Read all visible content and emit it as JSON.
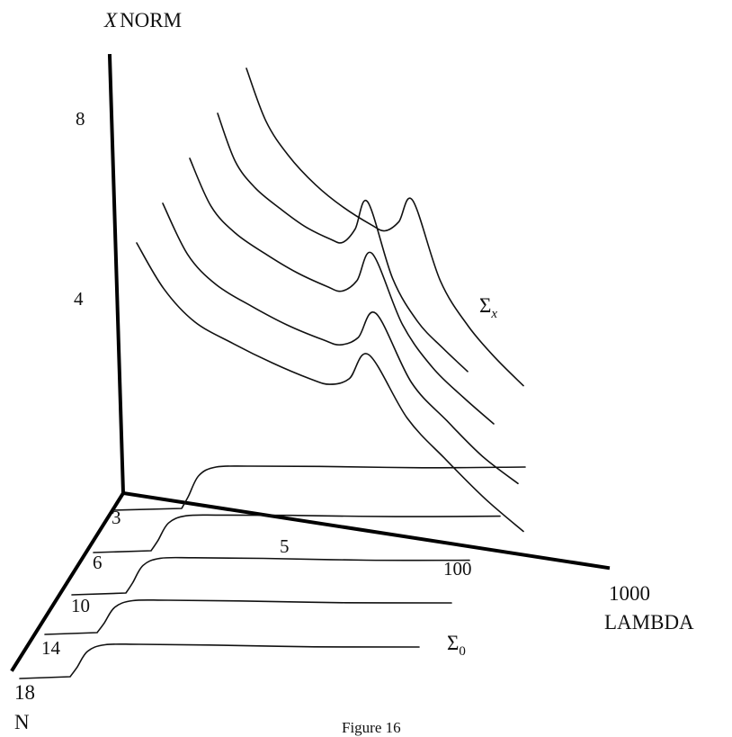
{
  "chart_data": {
    "type": "line",
    "subtype": "3d-perspective",
    "title": "",
    "caption": "Figure 16",
    "z_axis": {
      "label_italic": "X",
      "label": "NORM",
      "ticks": [
        "8",
        "4"
      ]
    },
    "x_axis": {
      "label_value": "1000",
      "label": "LAMBDA",
      "ticks": [
        "5",
        "100"
      ]
    },
    "n_axis": {
      "label_value": "18",
      "label": "N",
      "ticks": [
        "3",
        "6",
        "10",
        "14"
      ]
    },
    "surface_labels": {
      "sigma_x": {
        "symbol": "Σ",
        "subscript": "x"
      },
      "sigma_0": {
        "symbol": "Σ",
        "subscript": "0"
      }
    },
    "series_sigma_x": [
      {
        "n": 18,
        "x": [
          0.0,
          0.07,
          0.15,
          0.25,
          0.35,
          0.45,
          0.5,
          0.55,
          0.6,
          0.7,
          0.8,
          0.9,
          1.0
        ],
        "y": [
          4.5,
          3.2,
          2.4,
          2.1,
          1.9,
          1.8,
          1.85,
          2.3,
          3.4,
          1.6,
          0.6,
          -0.3,
          -1.0
        ]
      },
      {
        "n": 14,
        "x": [
          0.0,
          0.07,
          0.15,
          0.25,
          0.35,
          0.45,
          0.5,
          0.55,
          0.6,
          0.7,
          0.8,
          0.9,
          1.0
        ],
        "y": [
          5.3,
          3.8,
          3.1,
          2.8,
          2.6,
          2.55,
          2.6,
          3.1,
          4.2,
          2.2,
          1.3,
          0.5,
          0.0
        ]
      },
      {
        "n": 10,
        "x": [
          0.0,
          0.07,
          0.15,
          0.25,
          0.35,
          0.45,
          0.5,
          0.55,
          0.6,
          0.7,
          0.8,
          0.9,
          1.0
        ],
        "y": [
          6.0,
          4.6,
          4.0,
          3.7,
          3.5,
          3.45,
          3.5,
          4.1,
          5.3,
          3.2,
          2.1,
          1.5,
          1.0
        ]
      },
      {
        "n": 6,
        "x": [
          0.0,
          0.07,
          0.15,
          0.25,
          0.35,
          0.45,
          0.5,
          0.55,
          0.6,
          0.7,
          0.8,
          0.9,
          1.0
        ],
        "y": [
          7.0,
          5.6,
          5.0,
          4.7,
          4.5,
          4.5,
          4.6,
          5.3,
          6.5,
          4.2,
          3.1,
          2.6,
          2.2
        ]
      },
      {
        "n": 3,
        "x": [
          0.0,
          0.07,
          0.15,
          0.25,
          0.35,
          0.45,
          0.5,
          0.55,
          0.6,
          0.7,
          0.8,
          0.9,
          1.0
        ],
        "y": [
          8.6,
          7.0,
          6.2,
          5.7,
          5.5,
          5.5,
          5.6,
          6.3,
          7.5,
          5.0,
          3.9,
          3.3,
          2.9
        ]
      }
    ],
    "series_sigma_0": [
      {
        "n": 3,
        "x": [
          0.0,
          0.02,
          0.05,
          0.1,
          0.2,
          0.4,
          0.7,
          1.0
        ],
        "y": [
          0.0,
          0.3,
          0.8,
          1.0,
          1.0,
          0.95,
          0.85,
          0.8
        ]
      },
      {
        "n": 6,
        "x": [
          0.0,
          0.02,
          0.05,
          0.1,
          0.2,
          0.4,
          0.7,
          1.0
        ],
        "y": [
          0.0,
          0.3,
          0.8,
          1.0,
          1.0,
          0.95,
          0.85,
          0.8
        ]
      },
      {
        "n": 10,
        "x": [
          0.0,
          0.02,
          0.05,
          0.1,
          0.2,
          0.4,
          0.7,
          1.0
        ],
        "y": [
          0.0,
          0.3,
          0.8,
          1.0,
          1.0,
          0.95,
          0.85,
          0.8
        ]
      },
      {
        "n": 14,
        "x": [
          0.0,
          0.02,
          0.05,
          0.1,
          0.2,
          0.4,
          0.7,
          1.0
        ],
        "y": [
          0.0,
          0.3,
          0.8,
          1.0,
          1.0,
          0.95,
          0.85,
          0.8
        ]
      },
      {
        "n": 18,
        "x": [
          0.0,
          0.02,
          0.05,
          0.1,
          0.2,
          0.4,
          0.7,
          1.0
        ],
        "y": [
          0.0,
          0.3,
          0.8,
          1.0,
          1.0,
          0.95,
          0.85,
          0.8
        ]
      }
    ]
  }
}
